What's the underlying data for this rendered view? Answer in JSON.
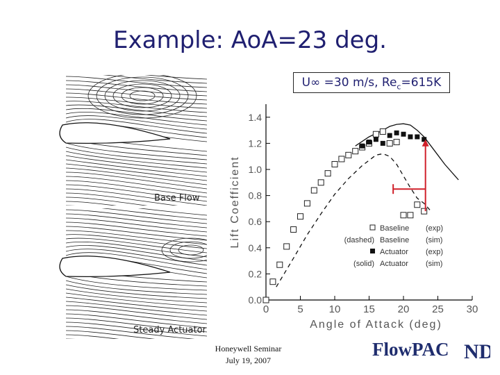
{
  "slide": {
    "title": "Example: AoA=23 deg.",
    "flow_condition": "U∞ =30 m/s, Rec=615K"
  },
  "panels": {
    "top_label": "Base Flow",
    "bottom_label": "Steady Actuator"
  },
  "footer": {
    "line1": "Honeywell Seminar",
    "line2": "July 19, 2007"
  },
  "logo": {
    "text": "FlowPAC",
    "monogram": "ND",
    "colors": {
      "text": "#1f2d6e",
      "monogram": "#1f2d6e"
    }
  },
  "colors": {
    "title": "#1f1f70",
    "annotation": "#d0202a"
  },
  "chart_data": {
    "type": "scatter",
    "xlabel": "Angle of Attack (deg)",
    "ylabel": "Lift Coefficient",
    "xlim": [
      0,
      30
    ],
    "ylim": [
      0,
      1.5
    ],
    "xticks": [
      0,
      5,
      10,
      15,
      20,
      25,
      30
    ],
    "yticks": [
      0,
      0.2,
      0.4,
      0.6,
      0.8,
      1.0,
      1.2,
      1.4
    ],
    "ytick_labels": [
      "0.0",
      "0.2",
      "0.4",
      "0.6",
      "0.8",
      "1.0",
      "1.2",
      "1.4"
    ],
    "grid": false,
    "legend_position": "bottom-right",
    "series": [
      {
        "name": "Baseline (exp)",
        "legend_left": "",
        "legend_mid": "Baseline",
        "legend_right": "(exp)",
        "marker": "open-square",
        "x": [
          0,
          1,
          2,
          3,
          4,
          5,
          6,
          7,
          8,
          9,
          10,
          11,
          12,
          13,
          14,
          15,
          16,
          17,
          18,
          19,
          20,
          21,
          22,
          23
        ],
        "y": [
          0.0,
          0.14,
          0.27,
          0.41,
          0.54,
          0.64,
          0.74,
          0.84,
          0.9,
          0.97,
          1.04,
          1.08,
          1.11,
          1.14,
          1.17,
          1.2,
          1.27,
          1.29,
          1.2,
          1.21,
          0.65,
          0.65,
          0.73,
          0.68
        ]
      },
      {
        "name": "Baseline (sim)",
        "legend_left": "(dashed)",
        "legend_mid": "Baseline",
        "legend_right": "(sim)",
        "style": "dashed",
        "x": [
          1.5,
          4,
          6,
          8,
          10,
          12,
          14,
          16,
          17,
          18,
          19,
          20,
          21,
          22,
          23,
          24
        ],
        "y": [
          0.1,
          0.32,
          0.5,
          0.66,
          0.81,
          0.93,
          1.03,
          1.11,
          1.12,
          1.1,
          1.04,
          0.95,
          0.86,
          0.78,
          0.74,
          0.68
        ]
      },
      {
        "name": "Actuator (exp)",
        "legend_left": "",
        "legend_mid": "Actuator",
        "legend_right": "(exp)",
        "marker": "filled-square",
        "x": [
          14,
          15,
          16,
          17,
          18,
          19,
          20,
          21,
          22,
          23
        ],
        "y": [
          1.18,
          1.21,
          1.23,
          1.2,
          1.26,
          1.28,
          1.27,
          1.25,
          1.25,
          1.23
        ]
      },
      {
        "name": "Actuator (sim)",
        "legend_left": "(solid)",
        "legend_mid": "Actuator",
        "legend_right": "(sim)",
        "style": "solid",
        "x": [
          13,
          15,
          17,
          18,
          19,
          20,
          21,
          22,
          23,
          24,
          25,
          26,
          28
        ],
        "y": [
          1.18,
          1.25,
          1.3,
          1.33,
          1.345,
          1.35,
          1.34,
          1.3,
          1.25,
          1.18,
          1.11,
          1.04,
          0.92
        ]
      }
    ],
    "annotations": [
      {
        "type": "arrow-up",
        "x": 23.2,
        "y_from": 0.68,
        "y_to": 1.23
      },
      {
        "type": "bar",
        "x_from": 18.5,
        "x_to": 23.2,
        "y": 0.85
      }
    ]
  }
}
